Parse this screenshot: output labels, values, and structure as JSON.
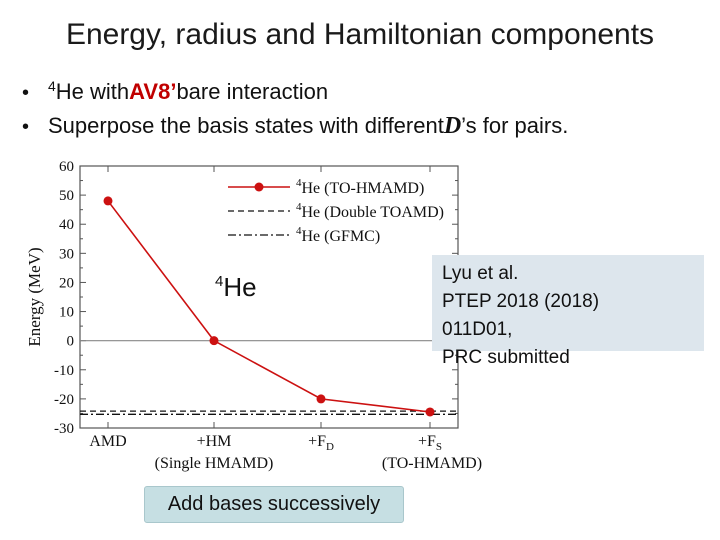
{
  "slide": {
    "title": "Energy, radius and Hamiltonian components"
  },
  "bullets": [
    {
      "sup": "4",
      "pre": "He with ",
      "accent": "AV8’",
      "post": " bare interaction"
    },
    {
      "pre": "Superpose the basis states with different ",
      "italic": "D",
      "post": "’s for pairs."
    }
  ],
  "reference": {
    "lines": [
      "Lyu et al.",
      "PTEP 2018 (2018)",
      "011D01,",
      "PRC  submitted"
    ]
  },
  "add_bases_label": "Add bases successively",
  "chart_data": {
    "type": "line",
    "ylabel": "Energy (MeV)",
    "ylim": [
      -30,
      60
    ],
    "yticks": [
      -30,
      -20,
      -10,
      0,
      10,
      20,
      30,
      40,
      50,
      60
    ],
    "categories": [
      "AMD",
      "+HM",
      "+F",
      "+F"
    ],
    "category_subscripts": [
      "",
      "",
      "D",
      "S"
    ],
    "group_labels": [
      {
        "text": "(Single HMAMD)",
        "under": 1
      },
      {
        "text": "(TO-HMAMD)",
        "under": 3
      }
    ],
    "inset_label": {
      "sup": "4",
      "text": "He"
    },
    "series": [
      {
        "name_sup": "4",
        "name": "He (TO-HMAMD)",
        "values": [
          48,
          0,
          -20,
          -24.5
        ],
        "color": "#cc1111",
        "style": "solid-marker"
      }
    ],
    "reference_lines": [
      {
        "name_sup": "4",
        "name": "He (Double TOAMD)",
        "value": -24.2,
        "style": "dashed"
      },
      {
        "name_sup": "4",
        "name": "He (GFMC)",
        "value": -25.3,
        "style": "dashdot"
      }
    ],
    "zero_line": true,
    "legend": "top-right"
  }
}
